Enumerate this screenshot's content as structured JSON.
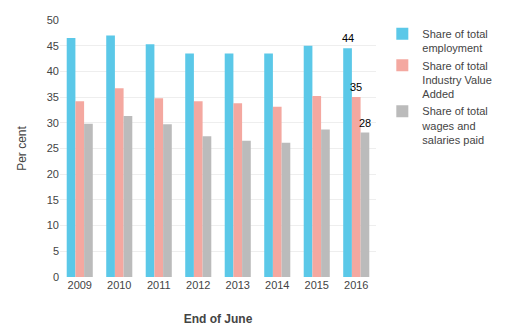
{
  "chart_data": {
    "type": "bar",
    "categories": [
      "2009",
      "2010",
      "2011",
      "2012",
      "2013",
      "2014",
      "2015",
      "2016"
    ],
    "series": [
      {
        "name": "Share of total\nemployment",
        "color": "#5BC8E8",
        "values": [
          46.5,
          47.0,
          45.3,
          43.5,
          43.5,
          43.5,
          45.0,
          44.5
        ]
      },
      {
        "name": "Share of total\nIndustry Value\nAdded",
        "color": "#F4A8A0",
        "values": [
          34.2,
          36.7,
          34.8,
          34.2,
          33.8,
          33.1,
          35.2,
          35.0
        ]
      },
      {
        "name": "Share of total\nwages and\nsalaries paid",
        "color": "#BBBBBB",
        "values": [
          29.8,
          31.3,
          29.7,
          27.4,
          26.5,
          26.1,
          28.7,
          28.1
        ]
      }
    ],
    "annotations": [
      {
        "text": "44",
        "category": "2016",
        "series": "Share of total\nemployment"
      },
      {
        "text": "35",
        "category": "2016",
        "series": "Share of total\nIndustry Value\nAdded"
      },
      {
        "text": "28",
        "category": "2016",
        "series": "Share of total\nwages and\nsalaries paid"
      }
    ],
    "x_label": "End of June",
    "y_label": "Per cent",
    "ylim": [
      0,
      50
    ],
    "yticks": [
      0,
      5,
      10,
      15,
      20,
      25,
      30,
      35,
      40,
      45,
      50
    ],
    "grid": true,
    "legend": "right"
  }
}
